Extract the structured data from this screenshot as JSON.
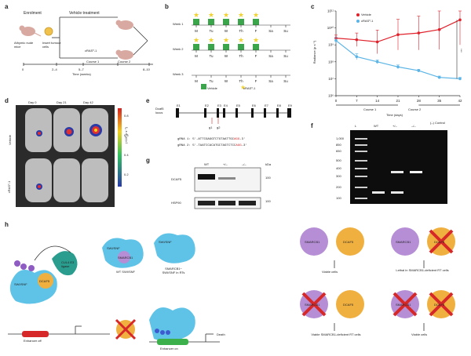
{
  "panels": {
    "a": {
      "letter": "a",
      "enrolled": "Enrolment",
      "vehicle": "Vehicle treatment",
      "mice": "Athymic nude mice",
      "cells": "Insert tumour cells",
      "cd": "cRAS⁰-1",
      "t0": "0",
      "t1": "2–4",
      "t2": "5–7",
      "t3": "8–10",
      "course1": "Course 1",
      "course2": "Course 2",
      "time": "Time (weeks)"
    },
    "b": {
      "letter": "b",
      "weeks": [
        "Week 1",
        "Week 2",
        "Week 3"
      ],
      "days": [
        "M",
        "Tu",
        "W",
        "Th",
        "F",
        "Sa",
        "Su"
      ],
      "legend_vehicle": "Vehicle",
      "legend_drug": "cRAS⁰-1"
    },
    "c": {
      "letter": "c",
      "legend": [
        "Vehicle",
        "cRAS⁰-1"
      ],
      "ylabel": "Radiance (p s⁻¹)",
      "xlabel": "Time (days)",
      "course1": "Course 1",
      "course2": "Course 2",
      "sig": "***"
    },
    "d": {
      "letter": "d",
      "days": [
        "Day 0",
        "Day 21",
        "Day 42"
      ],
      "rows": [
        "Vehicle",
        "cRAS⁰-1"
      ],
      "scale_label": "(×10⁶ p s⁻¹)",
      "ticks": [
        "0.8",
        "0.6",
        "0.4",
        "0.2"
      ]
    },
    "e": {
      "letter": "e",
      "locus": "Dcaf5 locus",
      "exons": [
        "E1",
        "E2",
        "E3",
        "E4",
        "E5",
        "E6",
        "E7",
        "E8",
        "E9"
      ],
      "sg": [
        "g1",
        "g2"
      ],
      "grna1_label": "gRNA 1: 5′-",
      "grna1_seq": "ATTCGAGGTCTGTAATTGC",
      "grna1_pam": "AGG",
      "grna2_label": "gRNA 2: 5′-",
      "grna2_seq": "TAATCCACATGCTAGTCTCC",
      "grna2_pam": "AGG",
      "end": "-3′"
    },
    "f": {
      "letter": "f",
      "lanes": [
        "L",
        "WT",
        "+/–",
        "–/–",
        "(–) Control"
      ],
      "bp": [
        "1,000",
        "850",
        "650",
        "500",
        "400",
        "300",
        "200",
        "100"
      ]
    },
    "g": {
      "letter": "g",
      "cols": [
        "WT",
        "+/–",
        "–/–"
      ],
      "kda": "kDa",
      "rows": [
        "DCAF5",
        "HSP90"
      ],
      "marks": [
        "100",
        "100"
      ]
    },
    "h": {
      "letter": "h",
      "labels": {
        "swi": "SWI/SNF",
        "dcaf5": "DCAF5",
        "cul4": "CUL4 E3 ligase",
        "wt": "WT SWI/SNF",
        "mut": "SMARCB1− SWI/SNF in RTs",
        "smarcb1": "SMARCB1",
        "enh_off": "Enhancer off",
        "enh_on": "Enhancer on",
        "death": "Death",
        "swi2": "SWI/SNF",
        "swi3": "SWI/SNF"
      },
      "grid": {
        "viable": "Viable cells",
        "lethal": "Lethal in SMARCB1-deficient RT cells",
        "viable_rt": "Viable SMARCB1-deficient RT cells",
        "viable2": "Viable cells"
      }
    }
  },
  "chart_data": {
    "type": "line",
    "title": "",
    "xlabel": "Time (days)",
    "ylabel": "Radiance (p s⁻¹)",
    "x": [
      0,
      7,
      14,
      21,
      28,
      35,
      42
    ],
    "xlim": [
      0,
      42
    ],
    "ylog": true,
    "ylim": [
      1000000.0,
      100000000000.0
    ],
    "yticks": [
      "10⁶",
      "10⁷",
      "10⁸",
      "10⁹",
      "10¹⁰",
      "10¹¹"
    ],
    "xticks": [
      "0",
      "7",
      "14",
      "21",
      "28",
      "35",
      "42"
    ],
    "series": [
      {
        "name": "Vehicle",
        "color": "#e0202a",
        "values": [
          2500000000.0,
          2000000000.0,
          1500000000.0,
          4000000000.0,
          5000000000.0,
          8000000000.0,
          30000000000.0
        ],
        "err": [
          1.5,
          2.5,
          5,
          8,
          10,
          15,
          30
        ]
      },
      {
        "name": "cRAS⁰-1",
        "color": "#5ab4e6",
        "values": [
          1800000000.0,
          200000000.0,
          100000000.0,
          50000000.0,
          30000000.0,
          12000000.0,
          10000000.0
        ],
        "err": [
          1.5,
          1.5,
          1.3,
          1.3,
          1.2,
          1.2,
          1.2
        ]
      }
    ]
  }
}
